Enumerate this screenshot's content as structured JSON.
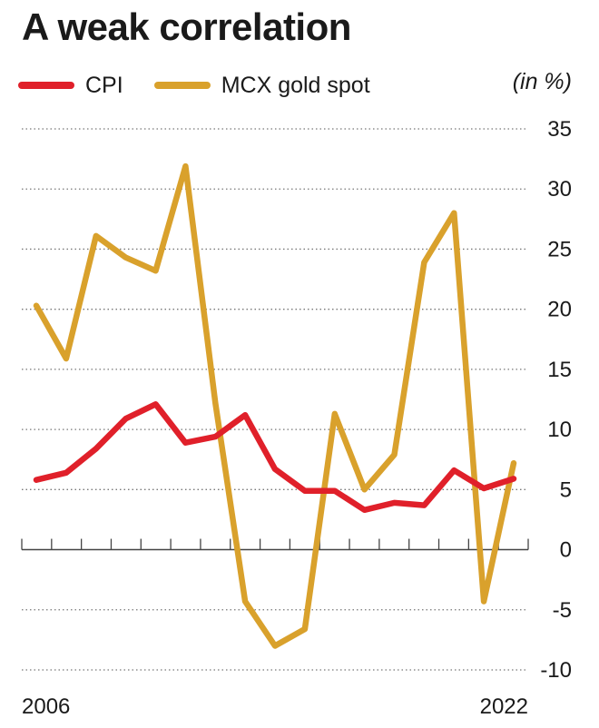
{
  "chart_data": {
    "type": "line",
    "title": "A weak correlation",
    "unit": "(in %)",
    "xlabel": "",
    "ylabel": "",
    "x": [
      2006,
      2007,
      2008,
      2009,
      2010,
      2011,
      2012,
      2013,
      2014,
      2015,
      2016,
      2017,
      2018,
      2019,
      2020,
      2021,
      2022
    ],
    "x_tick_labels": [
      "2006",
      "2022"
    ],
    "ylim": [
      -10,
      35
    ],
    "y_ticks": [
      35,
      30,
      25,
      20,
      15,
      10,
      5,
      0,
      -5,
      -10
    ],
    "grid": true,
    "legend_position": "top-left",
    "series": [
      {
        "name": "CPI",
        "color": "#e0202a",
        "values": [
          5.8,
          6.4,
          8.4,
          10.9,
          12.1,
          8.9,
          9.4,
          11.2,
          6.7,
          4.9,
          4.9,
          3.3,
          3.9,
          3.7,
          6.6,
          5.1,
          5.9
        ]
      },
      {
        "name": "MCX gold spot",
        "color": "#d9a12c",
        "values": [
          20.3,
          15.9,
          26.1,
          24.3,
          23.2,
          31.9,
          12.2,
          -4.3,
          -8.0,
          -6.6,
          11.3,
          5.0,
          7.9,
          23.9,
          28.0,
          -4.3,
          7.2
        ]
      }
    ]
  }
}
